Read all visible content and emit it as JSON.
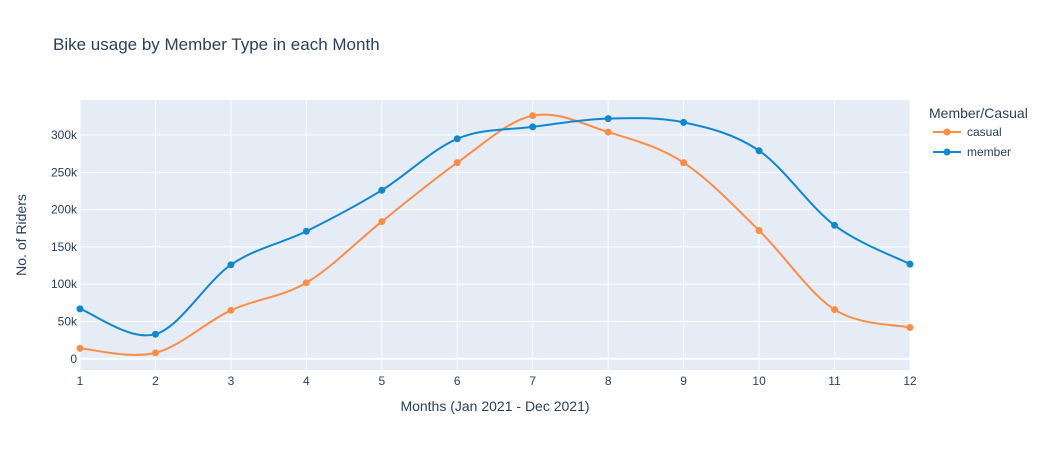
{
  "chart_data": {
    "type": "line",
    "title": "Bike usage by Member Type in each Month",
    "xlabel": "Months (Jan 2021 - Dec 2021)",
    "ylabel": "No. of Riders",
    "x": [
      1,
      2,
      3,
      4,
      5,
      6,
      7,
      8,
      9,
      10,
      11,
      12
    ],
    "x_tick_labels": [
      "1",
      "2",
      "3",
      "4",
      "5",
      "6",
      "7",
      "8",
      "9",
      "10",
      "11",
      "12"
    ],
    "xlim": [
      1,
      12
    ],
    "ylim": [
      -15000,
      347000
    ],
    "y_ticks": [
      0,
      50000,
      100000,
      150000,
      200000,
      250000,
      300000
    ],
    "y_tick_labels": [
      "0",
      "50k",
      "100k",
      "150k",
      "200k",
      "250k",
      "300k"
    ],
    "grid": true,
    "legend_title": "Member/Casual",
    "legend_position": "top-right",
    "series": [
      {
        "name": "casual",
        "color": "#fc8d44",
        "values": [
          14000,
          8000,
          65000,
          102000,
          184000,
          263000,
          326000,
          304000,
          263000,
          172000,
          66000,
          42000
        ]
      },
      {
        "name": "member",
        "color": "#0f88d0",
        "values": [
          67000,
          33000,
          126000,
          171000,
          226000,
          295000,
          311000,
          322000,
          317000,
          279000,
          179000,
          127000
        ]
      }
    ],
    "plot_background": "#e5ecf6",
    "grid_color": "#ffffff"
  }
}
